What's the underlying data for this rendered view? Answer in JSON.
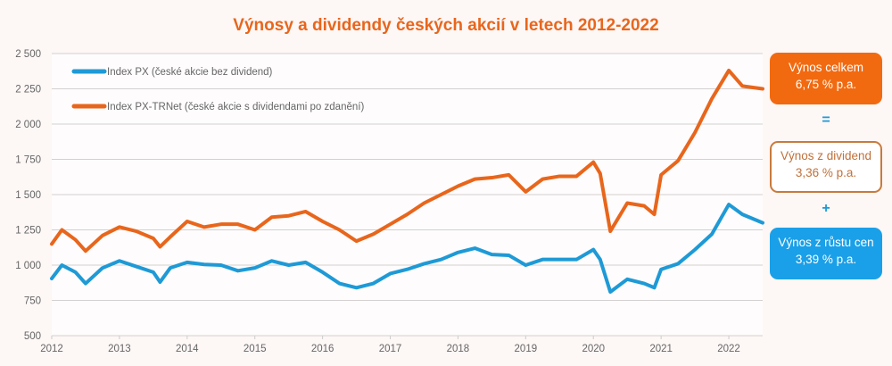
{
  "chart_data": {
    "type": "line",
    "title": "Výnosy a dividendy českých akcií v letech 2012-2022",
    "xlabel": "",
    "ylabel": "",
    "xlim": [
      2012,
      2022.5
    ],
    "ylim": [
      500,
      2500
    ],
    "x_ticks": [
      "2012",
      "2013",
      "2014",
      "2015",
      "2016",
      "2017",
      "2018",
      "2019",
      "2020",
      "2021",
      "2022"
    ],
    "y_ticks": [
      "500",
      "750",
      "1 000",
      "1 250",
      "1 500",
      "1 750",
      "2 000",
      "2 250",
      "2 500"
    ],
    "y_tick_values": [
      500,
      750,
      1000,
      1250,
      1500,
      1750,
      2000,
      2250,
      2500
    ],
    "grid": "horizontal",
    "legend": "top-left",
    "x": [
      2012.0,
      2012.15,
      2012.35,
      2012.5,
      2012.75,
      2013.0,
      2013.25,
      2013.5,
      2013.6,
      2013.75,
      2014.0,
      2014.25,
      2014.5,
      2014.75,
      2015.0,
      2015.25,
      2015.5,
      2015.75,
      2016.0,
      2016.25,
      2016.5,
      2016.75,
      2017.0,
      2017.25,
      2017.5,
      2017.75,
      2018.0,
      2018.25,
      2018.5,
      2018.75,
      2019.0,
      2019.25,
      2019.5,
      2019.75,
      2020.0,
      2020.1,
      2020.25,
      2020.5,
      2020.75,
      2020.9,
      2021.0,
      2021.25,
      2021.5,
      2021.75,
      2022.0,
      2022.2,
      2022.5
    ],
    "series": [
      {
        "name": "Index PX (české akcie bez dividend)",
        "color": "#1e9ad6",
        "values": [
          905,
          1000,
          950,
          870,
          980,
          1030,
          990,
          950,
          880,
          980,
          1020,
          1005,
          1000,
          960,
          980,
          1030,
          1000,
          1020,
          950,
          870,
          840,
          870,
          940,
          970,
          1010,
          1040,
          1090,
          1120,
          1075,
          1070,
          1000,
          1040,
          1040,
          1040,
          1110,
          1040,
          810,
          900,
          870,
          840,
          970,
          1010,
          1110,
          1220,
          1430,
          1360,
          1300
        ]
      },
      {
        "name": "Index PX-TRNet (české akcie s dividendami po zdanění)",
        "color": "#e8661c",
        "values": [
          1150,
          1250,
          1180,
          1100,
          1210,
          1270,
          1240,
          1190,
          1130,
          1200,
          1310,
          1270,
          1290,
          1290,
          1250,
          1340,
          1350,
          1380,
          1310,
          1250,
          1170,
          1220,
          1290,
          1360,
          1440,
          1500,
          1560,
          1610,
          1620,
          1640,
          1520,
          1610,
          1630,
          1630,
          1730,
          1650,
          1240,
          1440,
          1420,
          1360,
          1640,
          1740,
          1940,
          2180,
          2380,
          2270,
          2250
        ]
      }
    ]
  },
  "summary": {
    "total": {
      "label": "Výnos celkem",
      "value": "6,75 % p.a.",
      "color": "#f26a10"
    },
    "equals": "=",
    "dividend": {
      "label": "Výnos z dividend",
      "value": "3,36 % p.a.",
      "color": "#c87a3c"
    },
    "plus": "+",
    "growth": {
      "label": "Výnos z růstu cen",
      "value": "3,39 % p.a.",
      "color": "#1aa0e8"
    }
  }
}
